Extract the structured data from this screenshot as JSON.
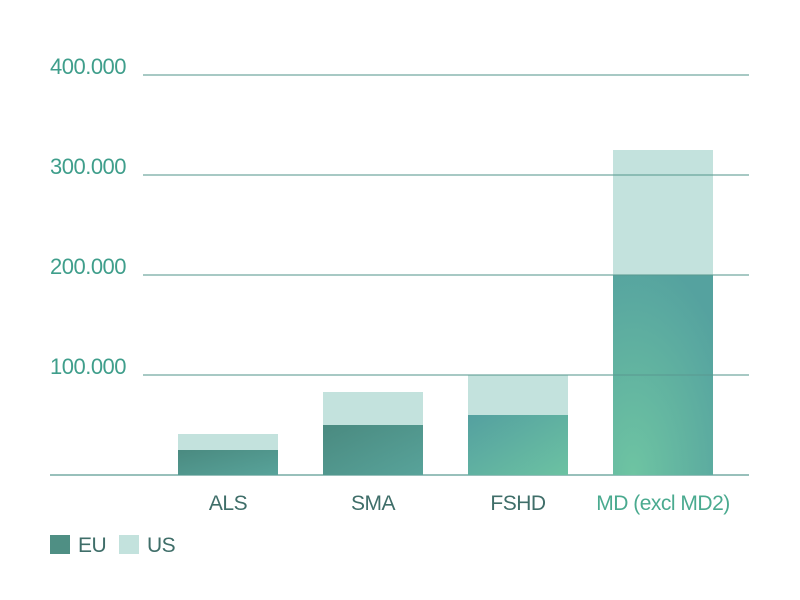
{
  "chart_data": {
    "type": "bar",
    "stacked": true,
    "title": "",
    "xlabel": "",
    "ylabel": "",
    "categories": [
      "ALS",
      "SMA",
      "FSHD",
      "MD (excl MD2)"
    ],
    "series": [
      {
        "name": "EU",
        "values": [
          25000,
          50000,
          60000,
          200000
        ],
        "color": "#4f8f84"
      },
      {
        "name": "US",
        "values": [
          16000,
          33000,
          40000,
          125000
        ],
        "color": "#c3e2dd"
      }
    ],
    "ylim": [
      0,
      400000
    ],
    "yticks": [
      100000,
      200000,
      300000,
      400000
    ],
    "ytick_labels": [
      "100.000",
      "200.000",
      "300.000",
      "400.000"
    ],
    "grid": true,
    "legend": "bottom-left",
    "colors": {
      "tick_label": "#3f9e8b",
      "axis_line": "#5a9a92",
      "category_label": "#3f6e69",
      "category_label_highlight": "#4aaa8f"
    }
  }
}
